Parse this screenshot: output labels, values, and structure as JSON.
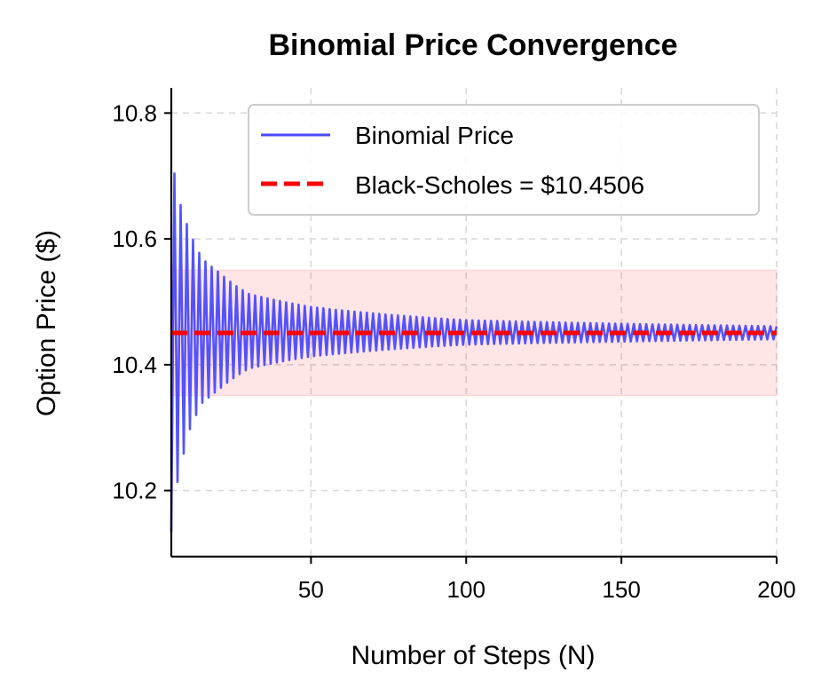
{
  "chart_data": {
    "type": "line",
    "title": "Binomial Price Convergence",
    "xlabel": "Number of Steps (N)",
    "ylabel": "Option Price ($)",
    "xlim": [
      5,
      200
    ],
    "ylim": [
      10.095,
      10.84
    ],
    "xticks": [
      50,
      100,
      150,
      200
    ],
    "yticks": [
      10.2,
      10.4,
      10.6,
      10.8
    ],
    "xtick_labels": [
      "50",
      "100",
      "150",
      "200"
    ],
    "ytick_labels": [
      "10.2",
      "10.4",
      "10.6",
      "10.8"
    ],
    "grid": true,
    "legend_position": "upper right",
    "series": [
      {
        "name": "Binomial Price",
        "style": "line",
        "color": "#4a4aff",
        "x_start": 5,
        "x_end": 200,
        "x_step": 1,
        "converges_to": 10.4506,
        "sampled_extremes": [
          {
            "n": 5,
            "price": 10.13
          },
          {
            "n": 6,
            "price": 10.7
          },
          {
            "n": 7,
            "price": 10.21
          },
          {
            "n": 8,
            "price": 10.65
          },
          {
            "n": 9,
            "price": 10.255
          },
          {
            "n": 10,
            "price": 10.62
          },
          {
            "n": 15,
            "price": 10.565
          },
          {
            "n": 20,
            "price": 10.545
          },
          {
            "n": 30,
            "price": 10.51
          },
          {
            "n": 50,
            "price": 10.49
          },
          {
            "n": 100,
            "price": 10.47
          },
          {
            "n": 200,
            "price": 10.461
          }
        ]
      },
      {
        "name": "Black-Scholes = $10.4506",
        "style": "dashed",
        "color": "#ff0000",
        "value": 10.4506
      }
    ],
    "band": {
      "color": "#ff0000",
      "opacity": 0.1,
      "y_min": 10.3506,
      "y_max": 10.5506,
      "x_min": 5,
      "x_max": 200
    },
    "legend": [
      {
        "label": "Binomial Price",
        "style": "line",
        "color": "#4a4aff"
      },
      {
        "label": "Black-Scholes = $10.4506",
        "style": "dashed",
        "color": "#ff0000"
      }
    ]
  }
}
